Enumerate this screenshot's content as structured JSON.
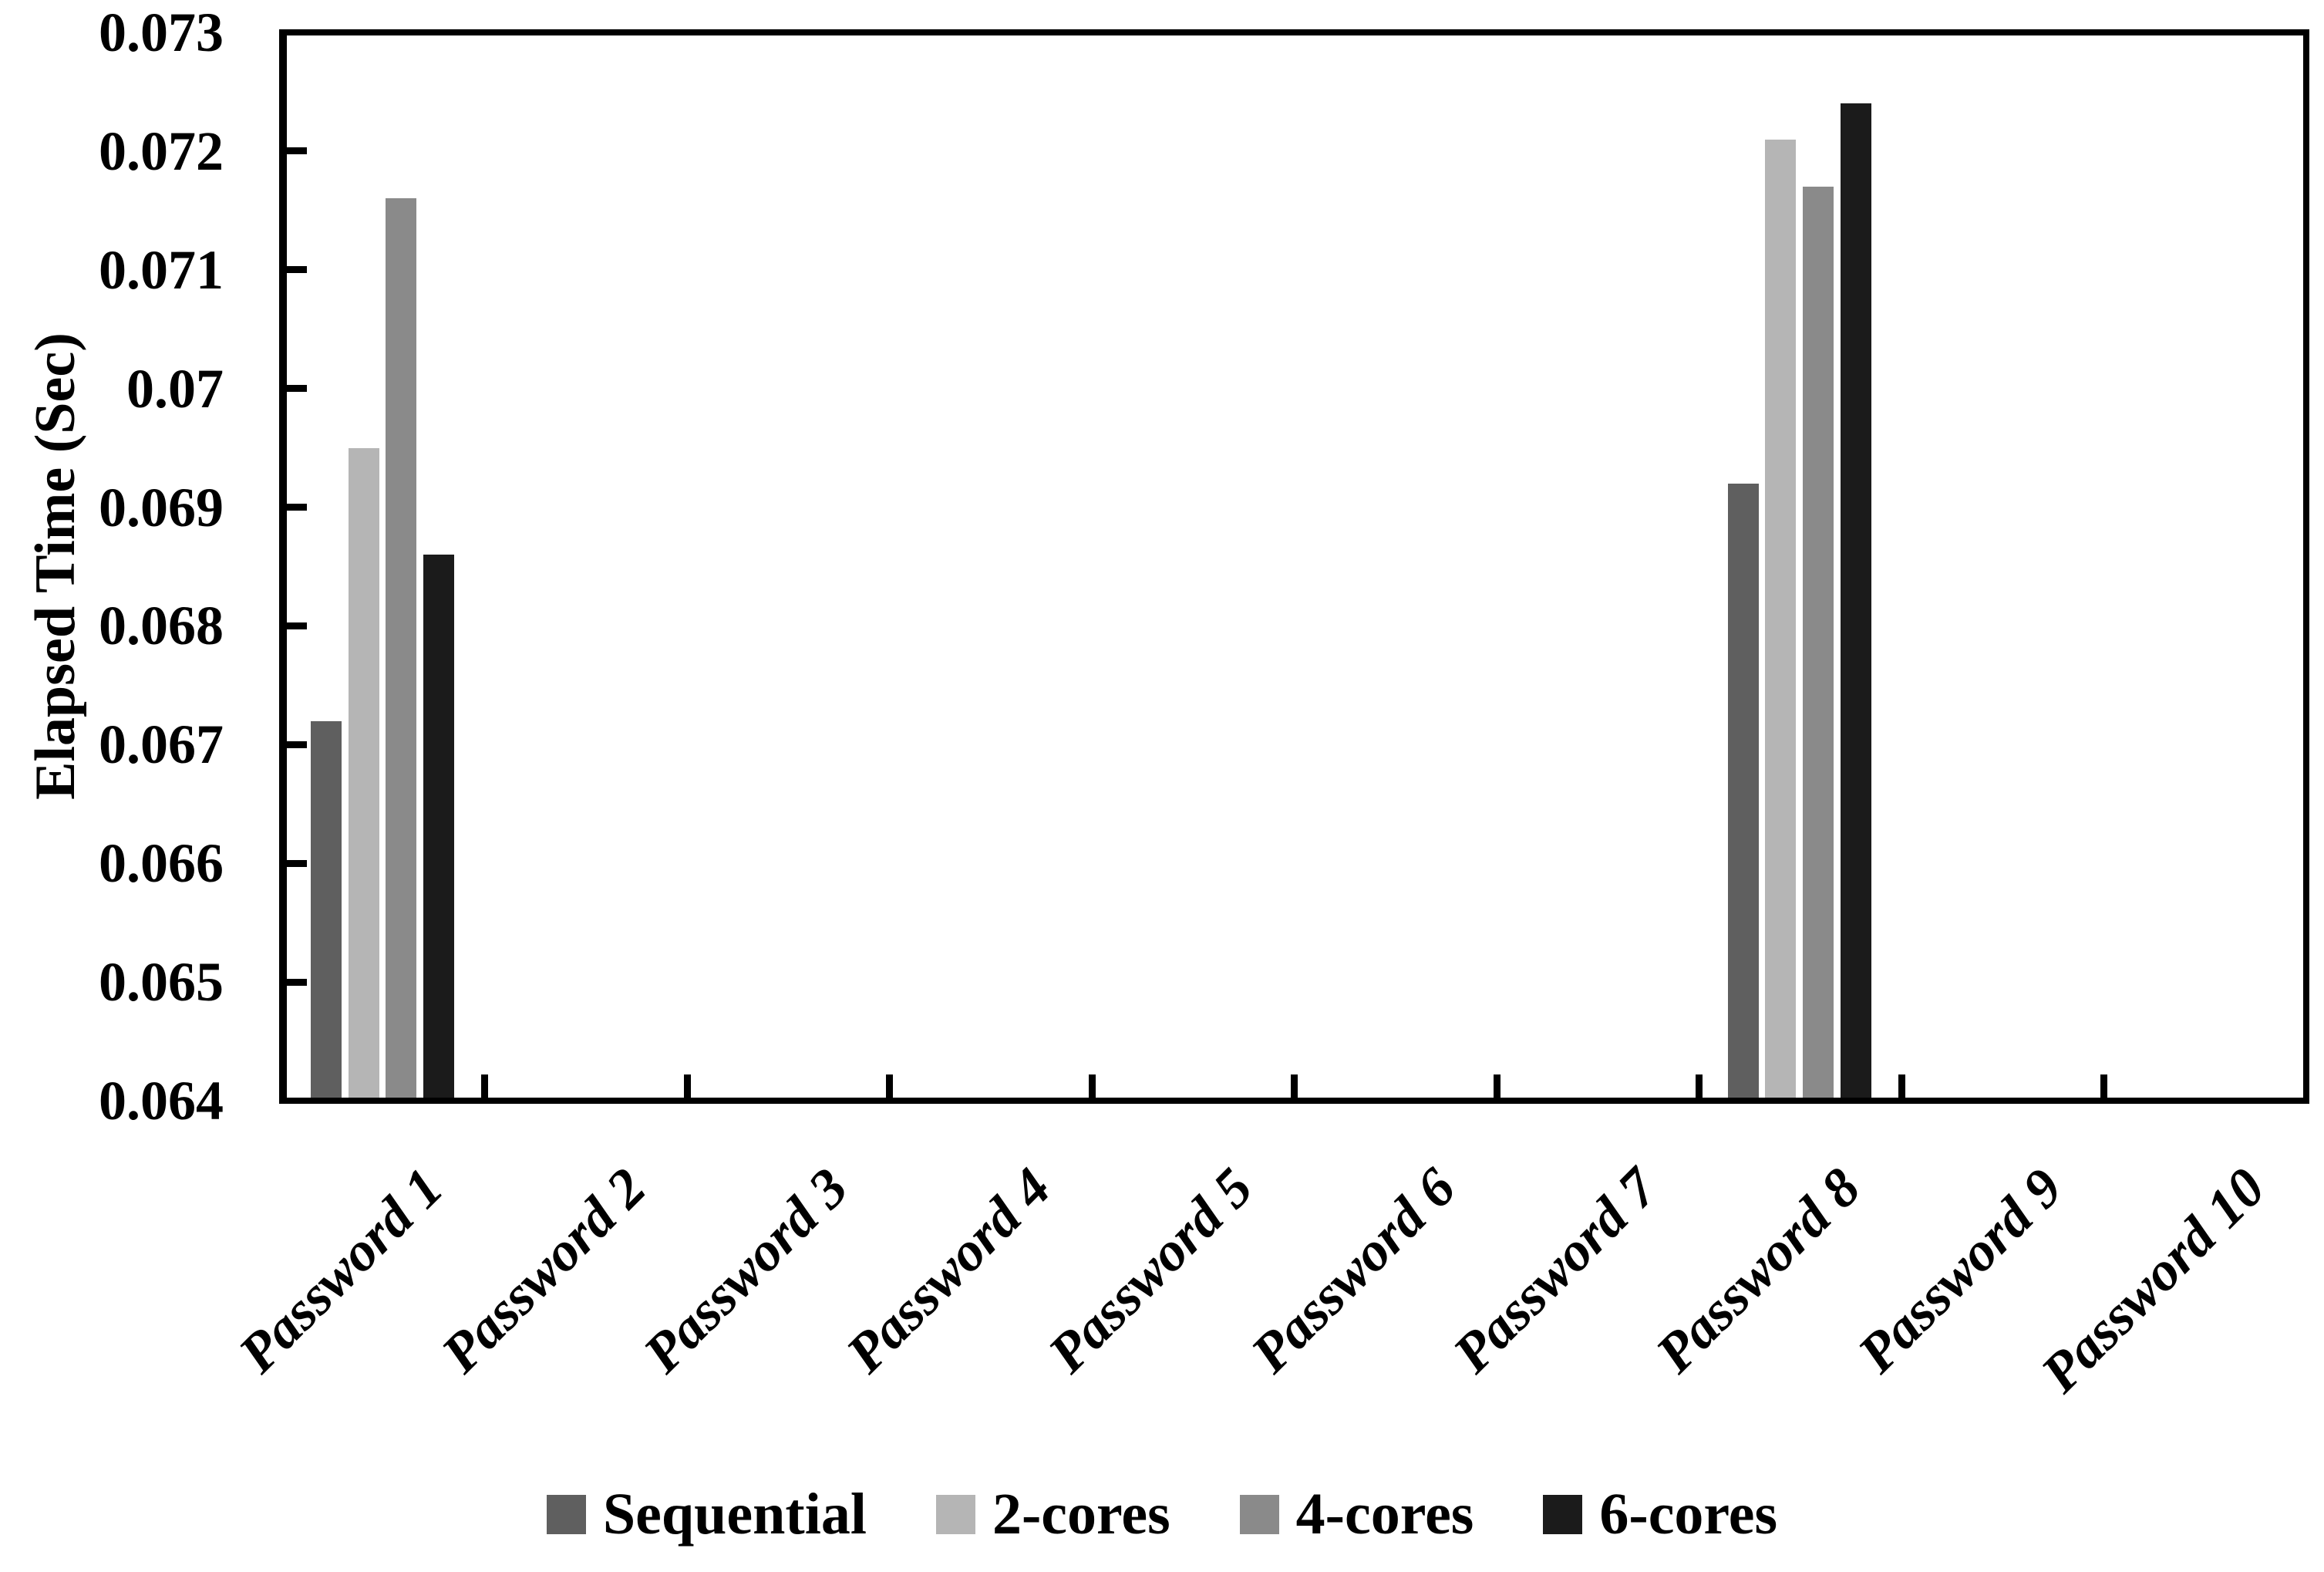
{
  "chart_data": {
    "type": "bar",
    "title": "",
    "xlabel": "",
    "ylabel": "Elapsed Time (Sec)",
    "ylim": [
      0.064,
      0.073
    ],
    "ytick_step": 0.001,
    "ytick_labels": [
      "0.073",
      "0.072",
      "0.071",
      "0.07",
      "0.069",
      "0.068",
      "0.067",
      "0.066",
      "0.065",
      "0.064"
    ],
    "categories": [
      "Password 1",
      "Password 2",
      "Password 3",
      "Password 4",
      "Password 5",
      "Password 6",
      "Password 7",
      "Password 8",
      "Password 9",
      "Password 10"
    ],
    "series": [
      {
        "name": "Sequential",
        "color": "#5f5f5f",
        "values": [
          0.0672,
          null,
          null,
          null,
          null,
          null,
          null,
          0.0692,
          null,
          null
        ]
      },
      {
        "name": "2-cores",
        "color": "#b5b5b5",
        "values": [
          0.0695,
          null,
          null,
          null,
          null,
          null,
          null,
          0.0721,
          null,
          null
        ]
      },
      {
        "name": "4-cores",
        "color": "#8a8a8a",
        "values": [
          0.0716,
          null,
          null,
          null,
          null,
          null,
          null,
          0.0717,
          null,
          null
        ]
      },
      {
        "name": "6-cores",
        "color": "#1b1b1b",
        "values": [
          0.0686,
          null,
          null,
          null,
          null,
          null,
          null,
          0.0724,
          null,
          null
        ]
      }
    ],
    "legend_position": "bottom",
    "grid": false,
    "axis_color": "#000000",
    "plot_background": "#ffffff",
    "figure_background": "#ffffff"
  }
}
